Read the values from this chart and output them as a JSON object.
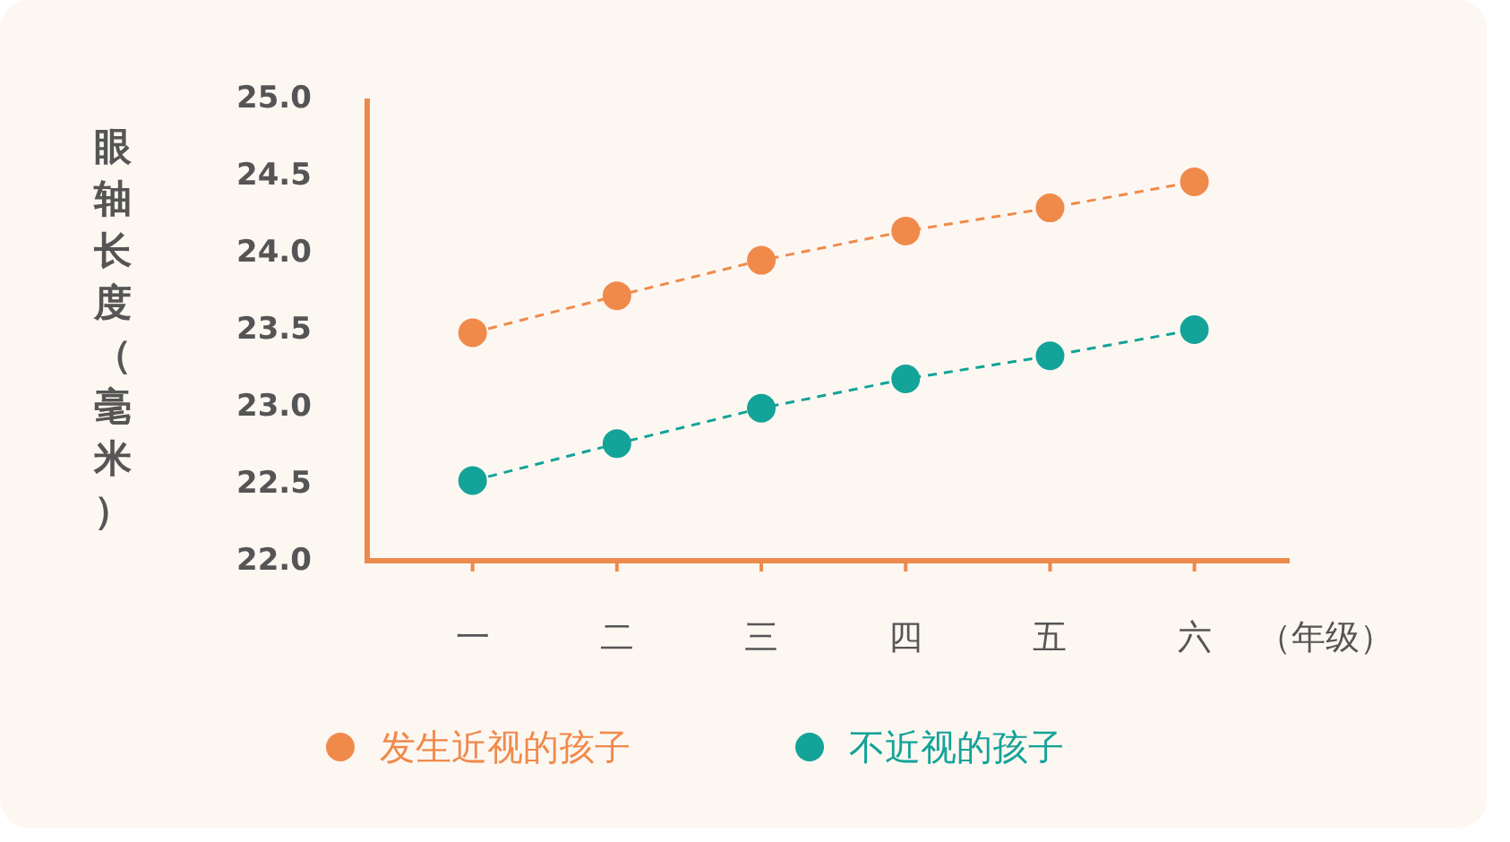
{
  "chart_data": {
    "type": "line",
    "xlabel": "（年级）",
    "ylabel": "眼轴长度（毫米）",
    "categories": [
      "一",
      "二",
      "三",
      "四",
      "五",
      "六"
    ],
    "series": [
      {
        "name": "发生近视的孩子",
        "color": "#f08a4b",
        "values": [
          23.48,
          23.72,
          23.95,
          24.14,
          24.29,
          24.46
        ]
      },
      {
        "name": "不近视的孩子",
        "color": "#14a398",
        "values": [
          22.52,
          22.76,
          22.99,
          23.18,
          23.33,
          23.5
        ]
      }
    ],
    "ylim": [
      22,
      25
    ],
    "yticks": [
      {
        "value": 22,
        "label": "22.0"
      },
      23.5,
      {
        "value": 23,
        "label": "23.0"
      },
      22.5,
      {
        "value": 24,
        "label": "24.0"
      },
      24.5,
      {
        "value": 25,
        "label": "25.0"
      }
    ],
    "legend": "bottom",
    "marker": "circle",
    "line_style": "dashed"
  }
}
